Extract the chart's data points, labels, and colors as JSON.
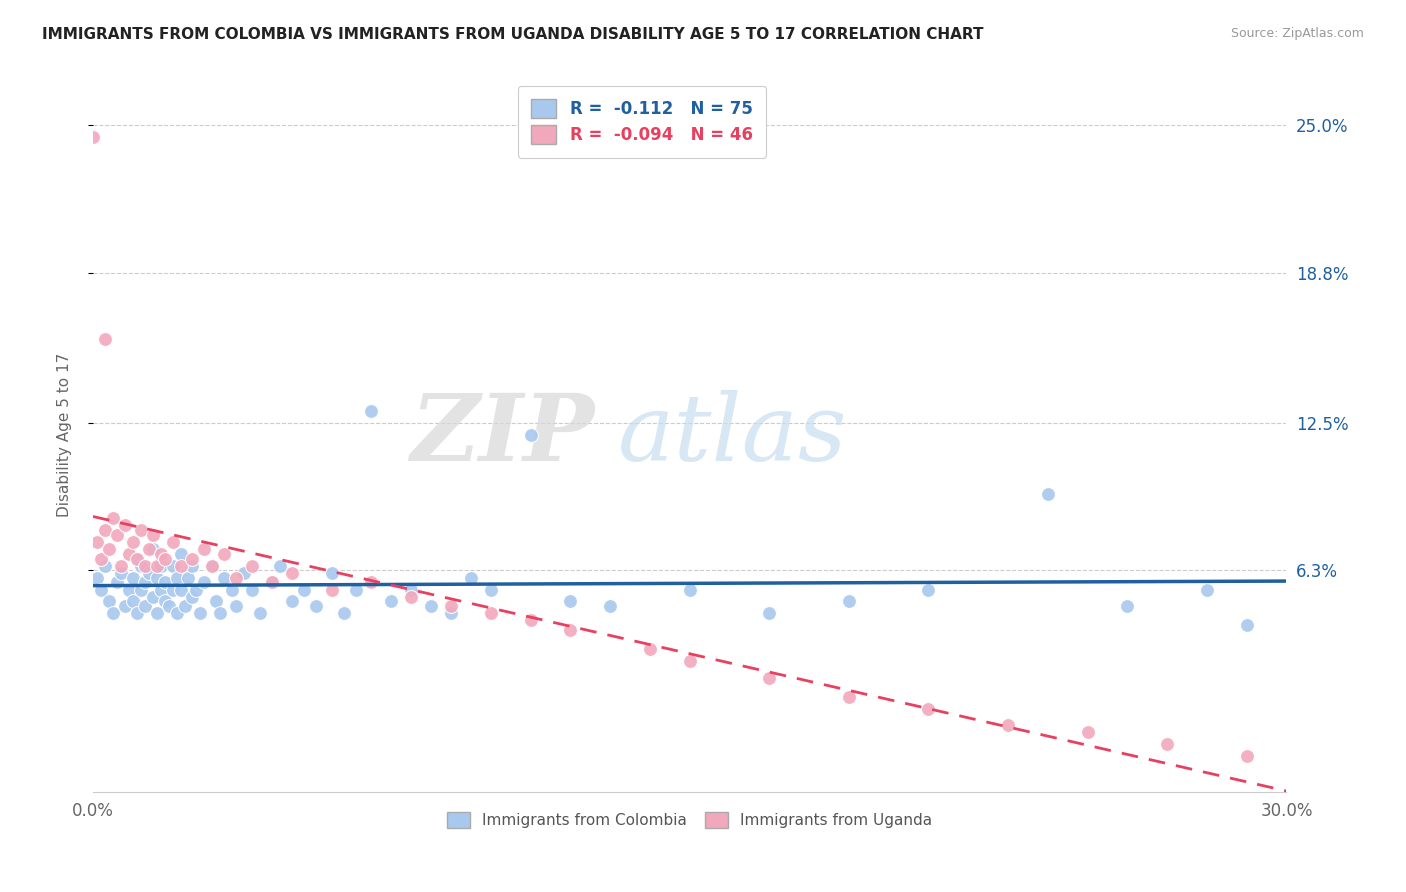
{
  "title": "IMMIGRANTS FROM COLOMBIA VS IMMIGRANTS FROM UGANDA DISABILITY AGE 5 TO 17 CORRELATION CHART",
  "source": "Source: ZipAtlas.com",
  "ylabel": "Disability Age 5 to 17",
  "xlim": [
    0.0,
    0.3
  ],
  "ylim": [
    -0.03,
    0.27
  ],
  "ytick_labels": [
    "6.3%",
    "12.5%",
    "18.8%",
    "25.0%"
  ],
  "ytick_vals": [
    0.063,
    0.125,
    0.188,
    0.25
  ],
  "colombia_color": "#A8C8EE",
  "uganda_color": "#F2A8BC",
  "colombia_line_color": "#2060A0",
  "uganda_line_color": "#E84060",
  "watermark_zip": "ZIP",
  "watermark_atlas": "atlas",
  "legend_r_colombia": "-0.112",
  "legend_n_colombia": "75",
  "legend_r_uganda": "-0.094",
  "legend_n_uganda": "46",
  "colombia_scatter_x": [
    0.001,
    0.002,
    0.003,
    0.004,
    0.005,
    0.006,
    0.007,
    0.008,
    0.009,
    0.01,
    0.01,
    0.011,
    0.011,
    0.012,
    0.012,
    0.013,
    0.013,
    0.014,
    0.015,
    0.015,
    0.016,
    0.016,
    0.017,
    0.017,
    0.018,
    0.018,
    0.019,
    0.02,
    0.02,
    0.021,
    0.021,
    0.022,
    0.022,
    0.023,
    0.024,
    0.025,
    0.025,
    0.026,
    0.027,
    0.028,
    0.03,
    0.031,
    0.032,
    0.033,
    0.035,
    0.036,
    0.038,
    0.04,
    0.042,
    0.045,
    0.047,
    0.05,
    0.053,
    0.056,
    0.06,
    0.063,
    0.066,
    0.07,
    0.075,
    0.08,
    0.085,
    0.09,
    0.095,
    0.1,
    0.11,
    0.12,
    0.13,
    0.15,
    0.17,
    0.19,
    0.21,
    0.24,
    0.26,
    0.28,
    0.29
  ],
  "colombia_scatter_y": [
    0.06,
    0.055,
    0.065,
    0.05,
    0.045,
    0.058,
    0.062,
    0.048,
    0.055,
    0.06,
    0.05,
    0.068,
    0.045,
    0.055,
    0.065,
    0.058,
    0.048,
    0.062,
    0.052,
    0.072,
    0.06,
    0.045,
    0.055,
    0.065,
    0.05,
    0.058,
    0.048,
    0.055,
    0.065,
    0.06,
    0.045,
    0.055,
    0.07,
    0.048,
    0.06,
    0.052,
    0.065,
    0.055,
    0.045,
    0.058,
    0.065,
    0.05,
    0.045,
    0.06,
    0.055,
    0.048,
    0.062,
    0.055,
    0.045,
    0.058,
    0.065,
    0.05,
    0.055,
    0.048,
    0.062,
    0.045,
    0.055,
    0.13,
    0.05,
    0.055,
    0.048,
    0.045,
    0.06,
    0.055,
    0.12,
    0.05,
    0.048,
    0.055,
    0.045,
    0.05,
    0.055,
    0.095,
    0.048,
    0.055,
    0.04
  ],
  "uganda_scatter_x": [
    0.001,
    0.002,
    0.003,
    0.004,
    0.005,
    0.006,
    0.007,
    0.008,
    0.009,
    0.01,
    0.011,
    0.012,
    0.013,
    0.014,
    0.015,
    0.016,
    0.017,
    0.018,
    0.02,
    0.022,
    0.025,
    0.028,
    0.03,
    0.033,
    0.036,
    0.04,
    0.045,
    0.05,
    0.06,
    0.07,
    0.08,
    0.09,
    0.1,
    0.11,
    0.12,
    0.14,
    0.15,
    0.17,
    0.19,
    0.21,
    0.23,
    0.25,
    0.27,
    0.29,
    0.0,
    0.003
  ],
  "uganda_scatter_y": [
    0.075,
    0.068,
    0.08,
    0.072,
    0.085,
    0.078,
    0.065,
    0.082,
    0.07,
    0.075,
    0.068,
    0.08,
    0.065,
    0.072,
    0.078,
    0.065,
    0.07,
    0.068,
    0.075,
    0.065,
    0.068,
    0.072,
    0.065,
    0.07,
    0.06,
    0.065,
    0.058,
    0.062,
    0.055,
    0.058,
    0.052,
    0.048,
    0.045,
    0.042,
    0.038,
    0.03,
    0.025,
    0.018,
    0.01,
    0.005,
    -0.002,
    -0.005,
    -0.01,
    -0.015,
    0.245,
    0.16
  ]
}
